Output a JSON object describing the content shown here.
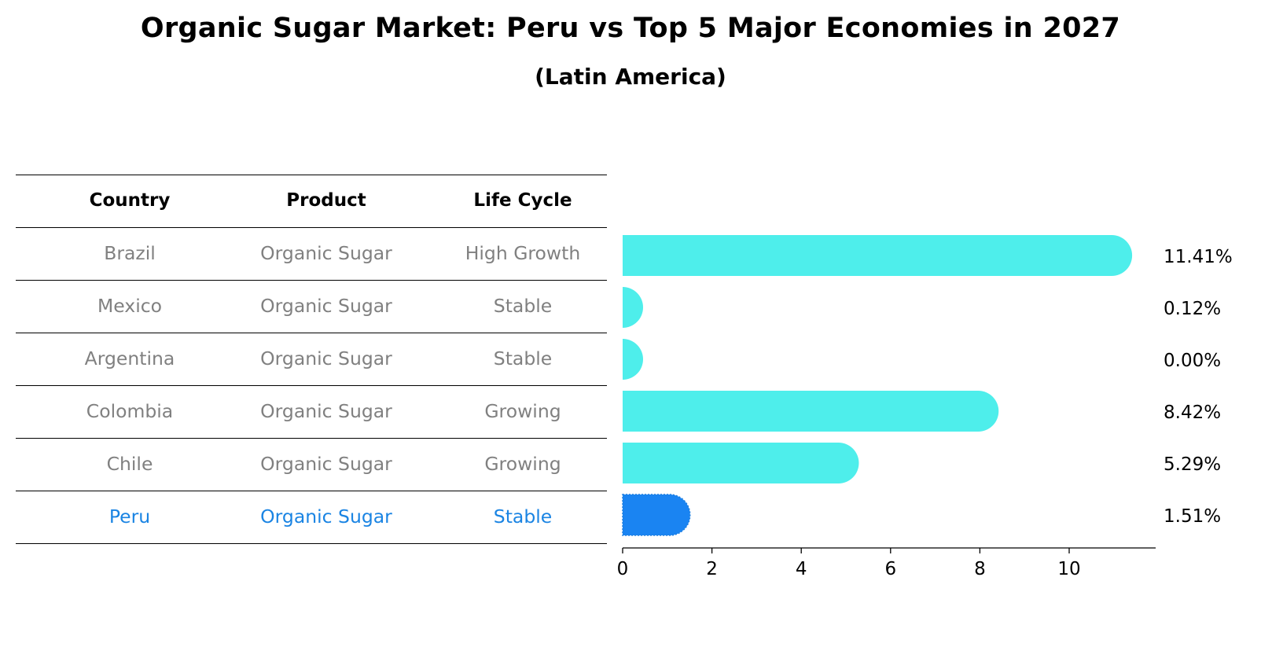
{
  "title": "Organic Sugar Market: Peru vs Top 5 Major Economies in 2027",
  "subtitle": "(Latin America)",
  "table": {
    "headers": [
      "Country",
      "Product",
      "Life Cycle"
    ],
    "rows": [
      {
        "country": "Brazil",
        "product": "Organic Sugar",
        "life_cycle": "High Growth",
        "highlight": false
      },
      {
        "country": "Mexico",
        "product": "Organic Sugar",
        "life_cycle": "Stable",
        "highlight": false
      },
      {
        "country": "Argentina",
        "product": "Organic Sugar",
        "life_cycle": "Stable",
        "highlight": false
      },
      {
        "country": "Colombia",
        "product": "Organic Sugar",
        "life_cycle": "Growing",
        "highlight": false
      },
      {
        "country": "Chile",
        "product": "Organic Sugar",
        "life_cycle": "Growing",
        "highlight": false
      },
      {
        "country": "Peru",
        "product": "Organic Sugar",
        "life_cycle": "Stable",
        "highlight": true
      }
    ]
  },
  "chart_data": {
    "type": "bar",
    "orientation": "horizontal",
    "categories": [
      "Brazil",
      "Mexico",
      "Argentina",
      "Colombia",
      "Chile",
      "Peru"
    ],
    "values": [
      11.41,
      0.12,
      0.0,
      8.42,
      5.29,
      1.51
    ],
    "value_labels": [
      "11.41%",
      "0.12%",
      "0.00%",
      "8.42%",
      "5.29%",
      "1.51%"
    ],
    "x_ticks": [
      0,
      2,
      4,
      6,
      8,
      10
    ],
    "xlim": [
      0,
      12
    ],
    "grid": false,
    "colors": {
      "default": "#4eeeeb",
      "highlight": "#1a84f2"
    },
    "highlight_category": "Peru"
  }
}
